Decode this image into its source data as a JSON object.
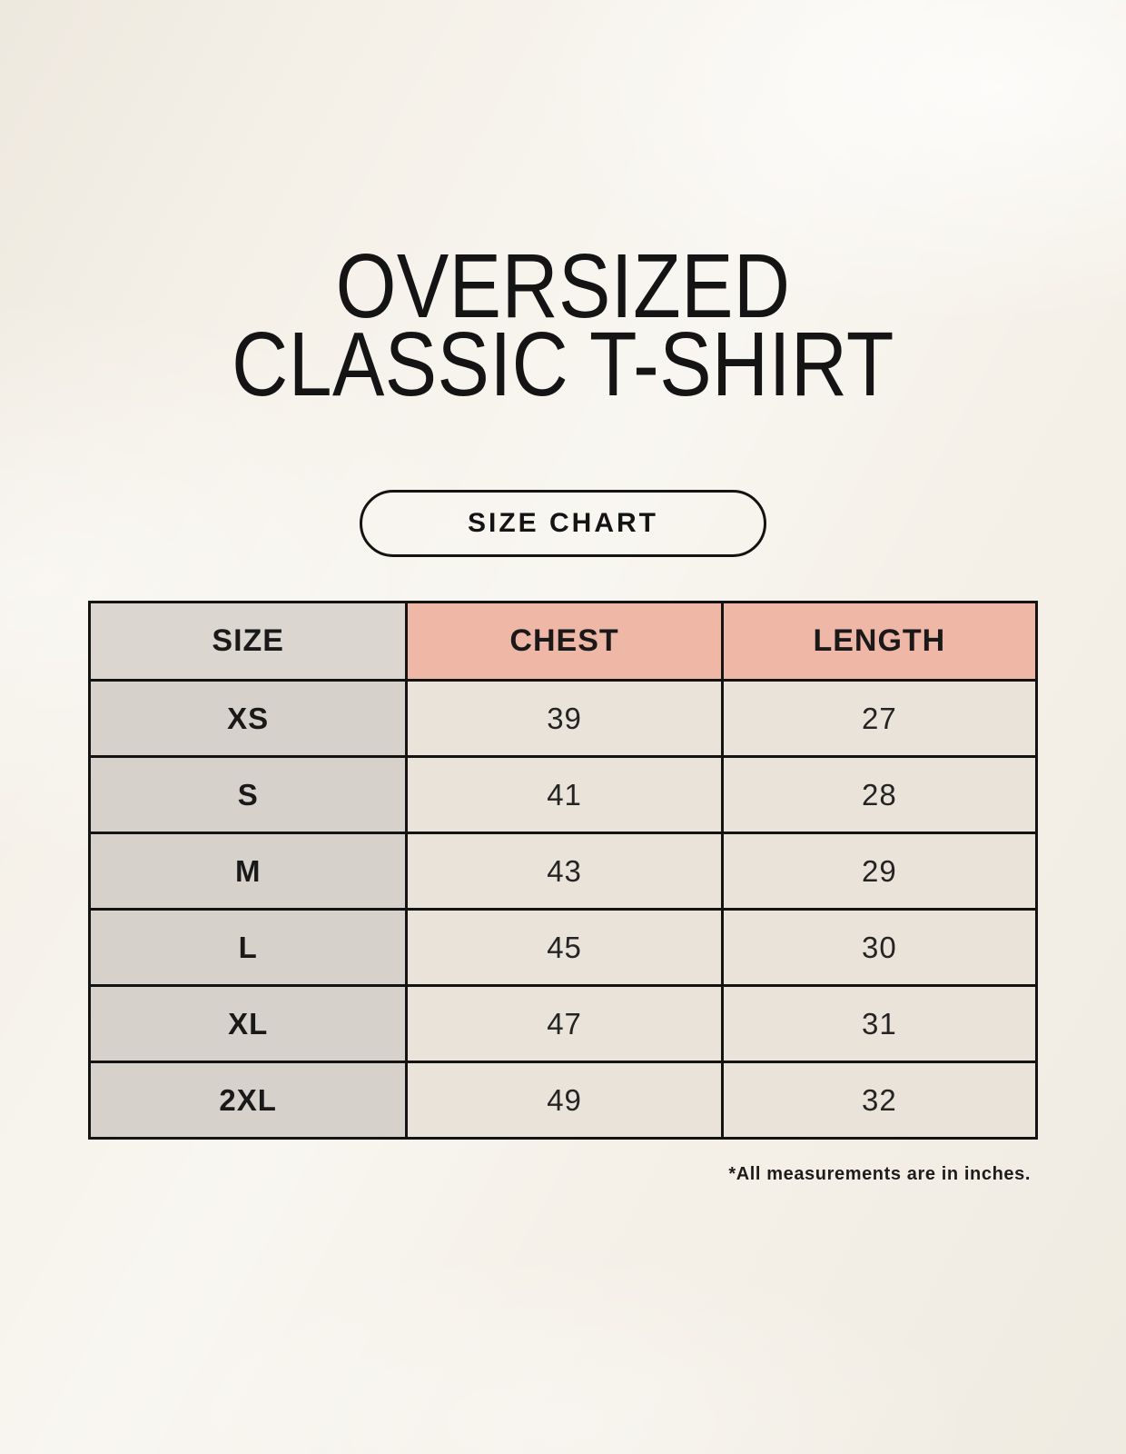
{
  "title": {
    "line1": "OVERSIZED",
    "line2": "CLASSIC T-SHIRT"
  },
  "size_chart_button": {
    "label": "SIZE CHART"
  },
  "table": {
    "headers": [
      "SIZE",
      "CHEST",
      "LENGTH"
    ],
    "rows": [
      {
        "size": "XS",
        "chest": "39",
        "length": "27"
      },
      {
        "size": "S",
        "chest": "41",
        "length": "28"
      },
      {
        "size": "M",
        "chest": "43",
        "length": "29"
      },
      {
        "size": "L",
        "chest": "45",
        "length": "30"
      },
      {
        "size": "XL",
        "chest": "47",
        "length": "31"
      },
      {
        "size": "2XL",
        "chest": "49",
        "length": "32"
      }
    ]
  },
  "footnote": "*All measurements are in inches.",
  "colors": {
    "background": "#f5f1e9",
    "header_pink": "#efb7a5",
    "header_gray": "#dcd6d1",
    "size_column_gray": "#d7d1cc",
    "cell_cream": "#eae3d9",
    "border_black": "#131313",
    "text_black": "#161616"
  }
}
